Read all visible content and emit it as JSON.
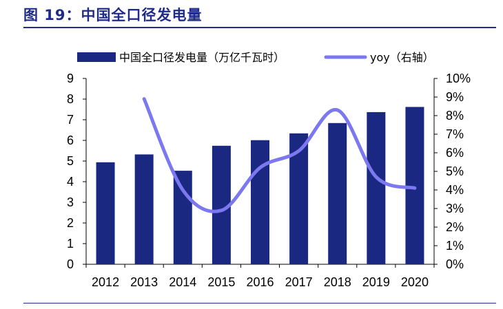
{
  "figure_title": "图 19：中国全口径发电量",
  "colors": {
    "bar": "#1A2882",
    "line": "#7B78F0",
    "rule": "#1F2B8A"
  },
  "chart_data": {
    "type": "bar",
    "categories": [
      "2012",
      "2013",
      "2014",
      "2015",
      "2016",
      "2017",
      "2018",
      "2019",
      "2020"
    ],
    "series": [
      {
        "name": "中国全口径发电量（万亿千瓦时）",
        "type": "bar",
        "axis": "left",
        "values": [
          4.94,
          5.32,
          4.53,
          5.74,
          6.01,
          6.34,
          6.84,
          7.37,
          7.62
        ]
      },
      {
        "name": "yoy（右轴）",
        "type": "line",
        "axis": "right",
        "values": [
          null,
          8.9,
          4.0,
          2.9,
          5.2,
          6.1,
          8.3,
          4.7,
          4.1
        ]
      }
    ],
    "y_left": {
      "min": 0,
      "max": 9,
      "ticks": [
        "0",
        "1",
        "2",
        "3",
        "4",
        "5",
        "6",
        "7",
        "8",
        "9"
      ]
    },
    "y_right": {
      "min": 0,
      "max": 10,
      "ticks": [
        "0%",
        "1%",
        "2%",
        "3%",
        "4%",
        "5%",
        "6%",
        "7%",
        "8%",
        "9%",
        "10%"
      ]
    },
    "legend": "top",
    "grid": false
  }
}
